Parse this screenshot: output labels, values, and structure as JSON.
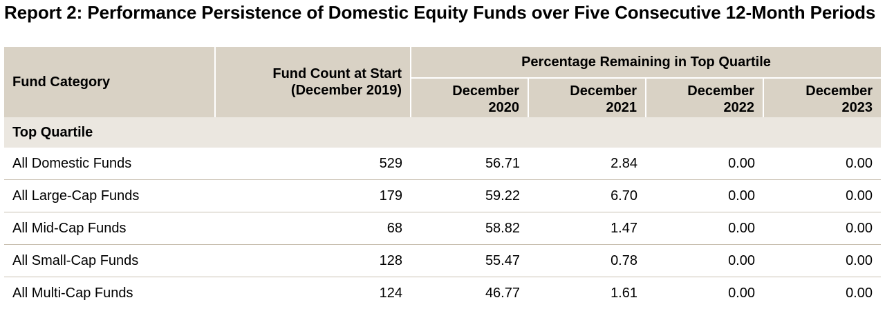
{
  "report": {
    "title": "Report 2: Performance Persistence of Domestic Equity Funds over Five Consecutive 12-Month Periods"
  },
  "table": {
    "headers": {
      "category": "Fund Category",
      "count": "Fund Count at Start (December 2019)",
      "group": "Percentage Remaining in Top Quartile",
      "years": [
        "December 2020",
        "December 2021",
        "December 2022",
        "December 2023"
      ]
    },
    "section_label": "Top Quartile",
    "rows": [
      {
        "category": "All Domestic Funds",
        "count": "529",
        "values": [
          "56.71",
          "2.84",
          "0.00",
          "0.00"
        ]
      },
      {
        "category": "All Large-Cap Funds",
        "count": "179",
        "values": [
          "59.22",
          "6.70",
          "0.00",
          "0.00"
        ]
      },
      {
        "category": "All Mid-Cap Funds",
        "count": "68",
        "values": [
          "58.82",
          "1.47",
          "0.00",
          "0.00"
        ]
      },
      {
        "category": "All Small-Cap Funds",
        "count": "128",
        "values": [
          "55.47",
          "0.78",
          "0.00",
          "0.00"
        ]
      },
      {
        "category": "All Multi-Cap Funds",
        "count": "124",
        "values": [
          "46.77",
          "1.61",
          "0.00",
          "0.00"
        ]
      }
    ]
  },
  "colors": {
    "header_bg": "#d9d2c5",
    "section_bg": "#ebe7e0",
    "row_divider": "#c8bfb0"
  }
}
